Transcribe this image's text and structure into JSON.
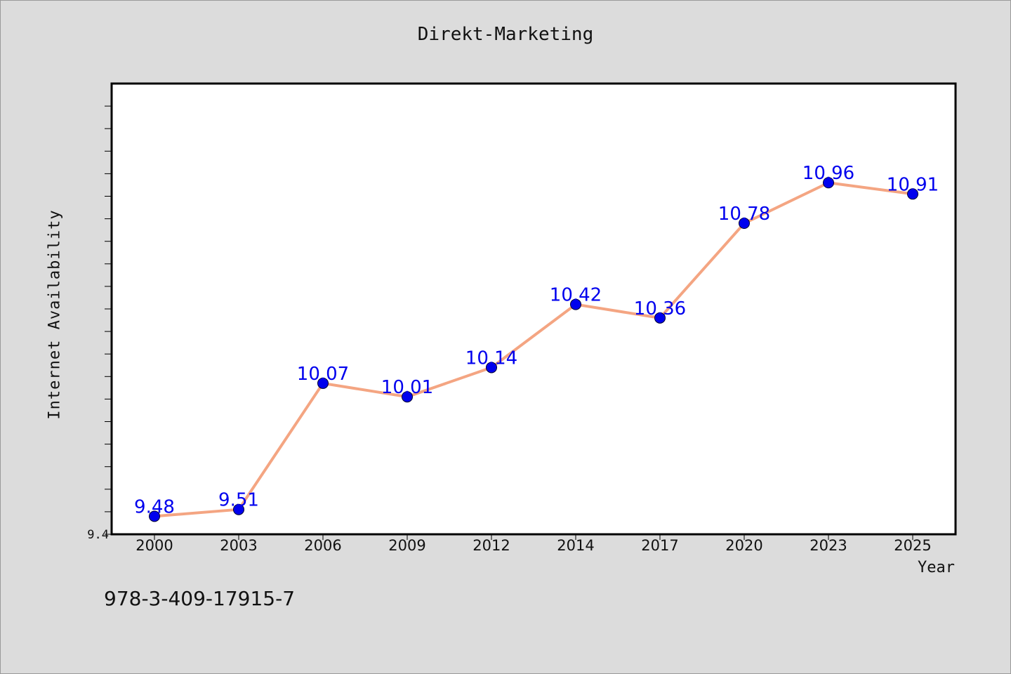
{
  "chart_data": {
    "type": "line",
    "title": "Direkt-Marketing",
    "xlabel": "Year",
    "ylabel": "Internet Availability",
    "categories": [
      "2000",
      "2003",
      "2006",
      "2009",
      "2012",
      "2014",
      "2017",
      "2020",
      "2023",
      "2025"
    ],
    "series": [
      {
        "values": [
          9.48,
          9.51,
          10.07,
          10.01,
          10.14,
          10.42,
          10.36,
          10.78,
          10.96,
          10.91
        ],
        "data_labels": [
          "9.48",
          "9.51",
          "10.07",
          "10.01",
          "10.14",
          "10.42",
          "10.36",
          "10.78",
          "10.96",
          "10.91"
        ]
      }
    ],
    "ylim": [
      9.4,
      11.4
    ],
    "yticks_labeled": [
      "9.4"
    ],
    "grid": false,
    "legend": "none",
    "colors": {
      "line": "#f4a582",
      "marker": "#0000ee",
      "data_label": "#0000ee",
      "plot_bg": "#ffffff",
      "figure_bg": "#dcdcdc"
    }
  },
  "footer_text": "978-3-409-17915-7"
}
